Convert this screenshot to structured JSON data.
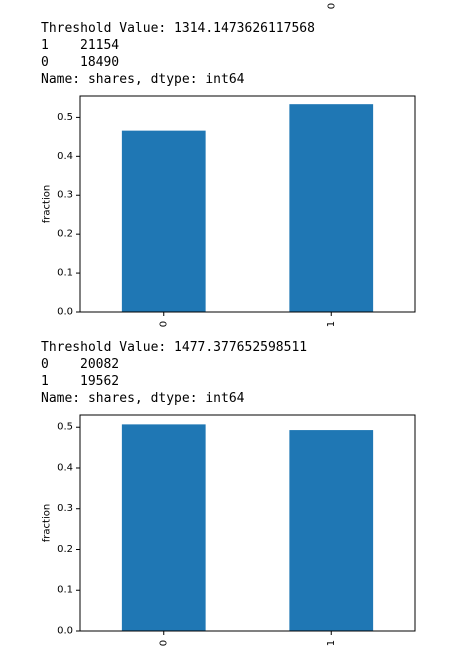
{
  "top_fragment": {
    "text": "0"
  },
  "outputs": [
    {
      "threshold_line": "Threshold Value: 1314.1473626117568",
      "counts": [
        {
          "index": "1",
          "value": "21154"
        },
        {
          "index": "0",
          "value": "18490"
        }
      ],
      "name_line": "Name: shares, dtype: int64"
    },
    {
      "threshold_line": "Threshold Value: 1477.377652598511",
      "counts": [
        {
          "index": "0",
          "value": "20082"
        },
        {
          "index": "1",
          "value": "19562"
        }
      ],
      "name_line": "Name: shares, dtype: int64"
    }
  ],
  "chart_data": [
    {
      "type": "bar",
      "categories": [
        "0",
        "1"
      ],
      "values": [
        0.466,
        0.534
      ],
      "xlabel": "",
      "ylabel": "fraction",
      "ylim": [
        0,
        0.555
      ],
      "yticks": [
        "0.0",
        "0.1",
        "0.2",
        "0.3",
        "0.4",
        "0.5"
      ],
      "bar_color": "#1f77b4",
      "grid": false
    },
    {
      "type": "bar",
      "categories": [
        "0",
        "1"
      ],
      "values": [
        0.507,
        0.493
      ],
      "xlabel": "",
      "ylabel": "fraction",
      "ylim": [
        0,
        0.53
      ],
      "yticks": [
        "0.0",
        "0.1",
        "0.2",
        "0.3",
        "0.4",
        "0.5"
      ],
      "bar_color": "#1f77b4",
      "grid": false
    }
  ]
}
